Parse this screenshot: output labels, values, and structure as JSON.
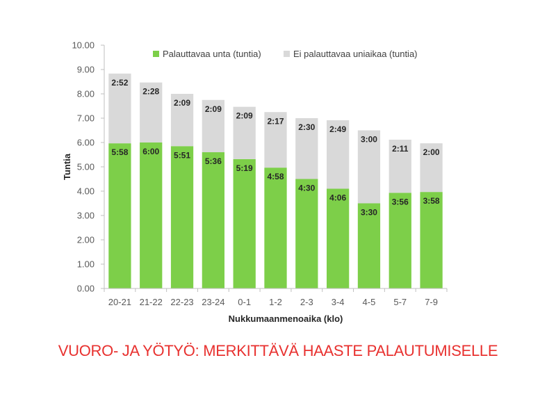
{
  "colors": {
    "recovering": "#7dcf49",
    "non_recovering": "#d9d9d9",
    "accent_red": "#e8312f"
  },
  "chart_data": {
    "type": "bar",
    "stacked": true,
    "xlabel": "Nukkumaanmenoaika (klo)",
    "ylabel": "Tuntia",
    "ylim": [
      0,
      10
    ],
    "yticks": [
      "0.00",
      "1.00",
      "2.00",
      "3.00",
      "4.00",
      "5.00",
      "6.00",
      "7.00",
      "8.00",
      "9.00",
      "10.00"
    ],
    "grid": false,
    "legend_position": "top",
    "categories": [
      "20-21",
      "21-22",
      "22-23",
      "23-24",
      "0-1",
      "1-2",
      "2-3",
      "3-4",
      "4-5",
      "5-7",
      "7-9"
    ],
    "series": [
      {
        "name": "Palauttavaa unta (tuntia)",
        "color": "#7dcf49",
        "values": [
          5.967,
          6.0,
          5.85,
          5.6,
          5.317,
          4.967,
          4.5,
          4.1,
          3.5,
          3.933,
          3.967
        ],
        "labels": [
          "5:58",
          "6:00",
          "5:51",
          "5:36",
          "5:19",
          "4:58",
          "4:30",
          "4:06",
          "3:30",
          "3:56",
          "3:58"
        ]
      },
      {
        "name": "Ei palauttavaa uniaikaa (tuntia)",
        "color": "#d9d9d9",
        "values": [
          2.867,
          2.467,
          2.15,
          2.15,
          2.15,
          2.283,
          2.5,
          2.817,
          3.0,
          2.183,
          2.0
        ],
        "labels": [
          "2:52",
          "2:28",
          "2:09",
          "2:09",
          "2:09",
          "2:17",
          "2:30",
          "2:49",
          "3:00",
          "2:11",
          "2:00"
        ]
      }
    ]
  },
  "footer": {
    "title": "VUORO- JA YÖTYÖ: MERKITTÄVÄ HAASTE PALAUTUMISELLE"
  }
}
